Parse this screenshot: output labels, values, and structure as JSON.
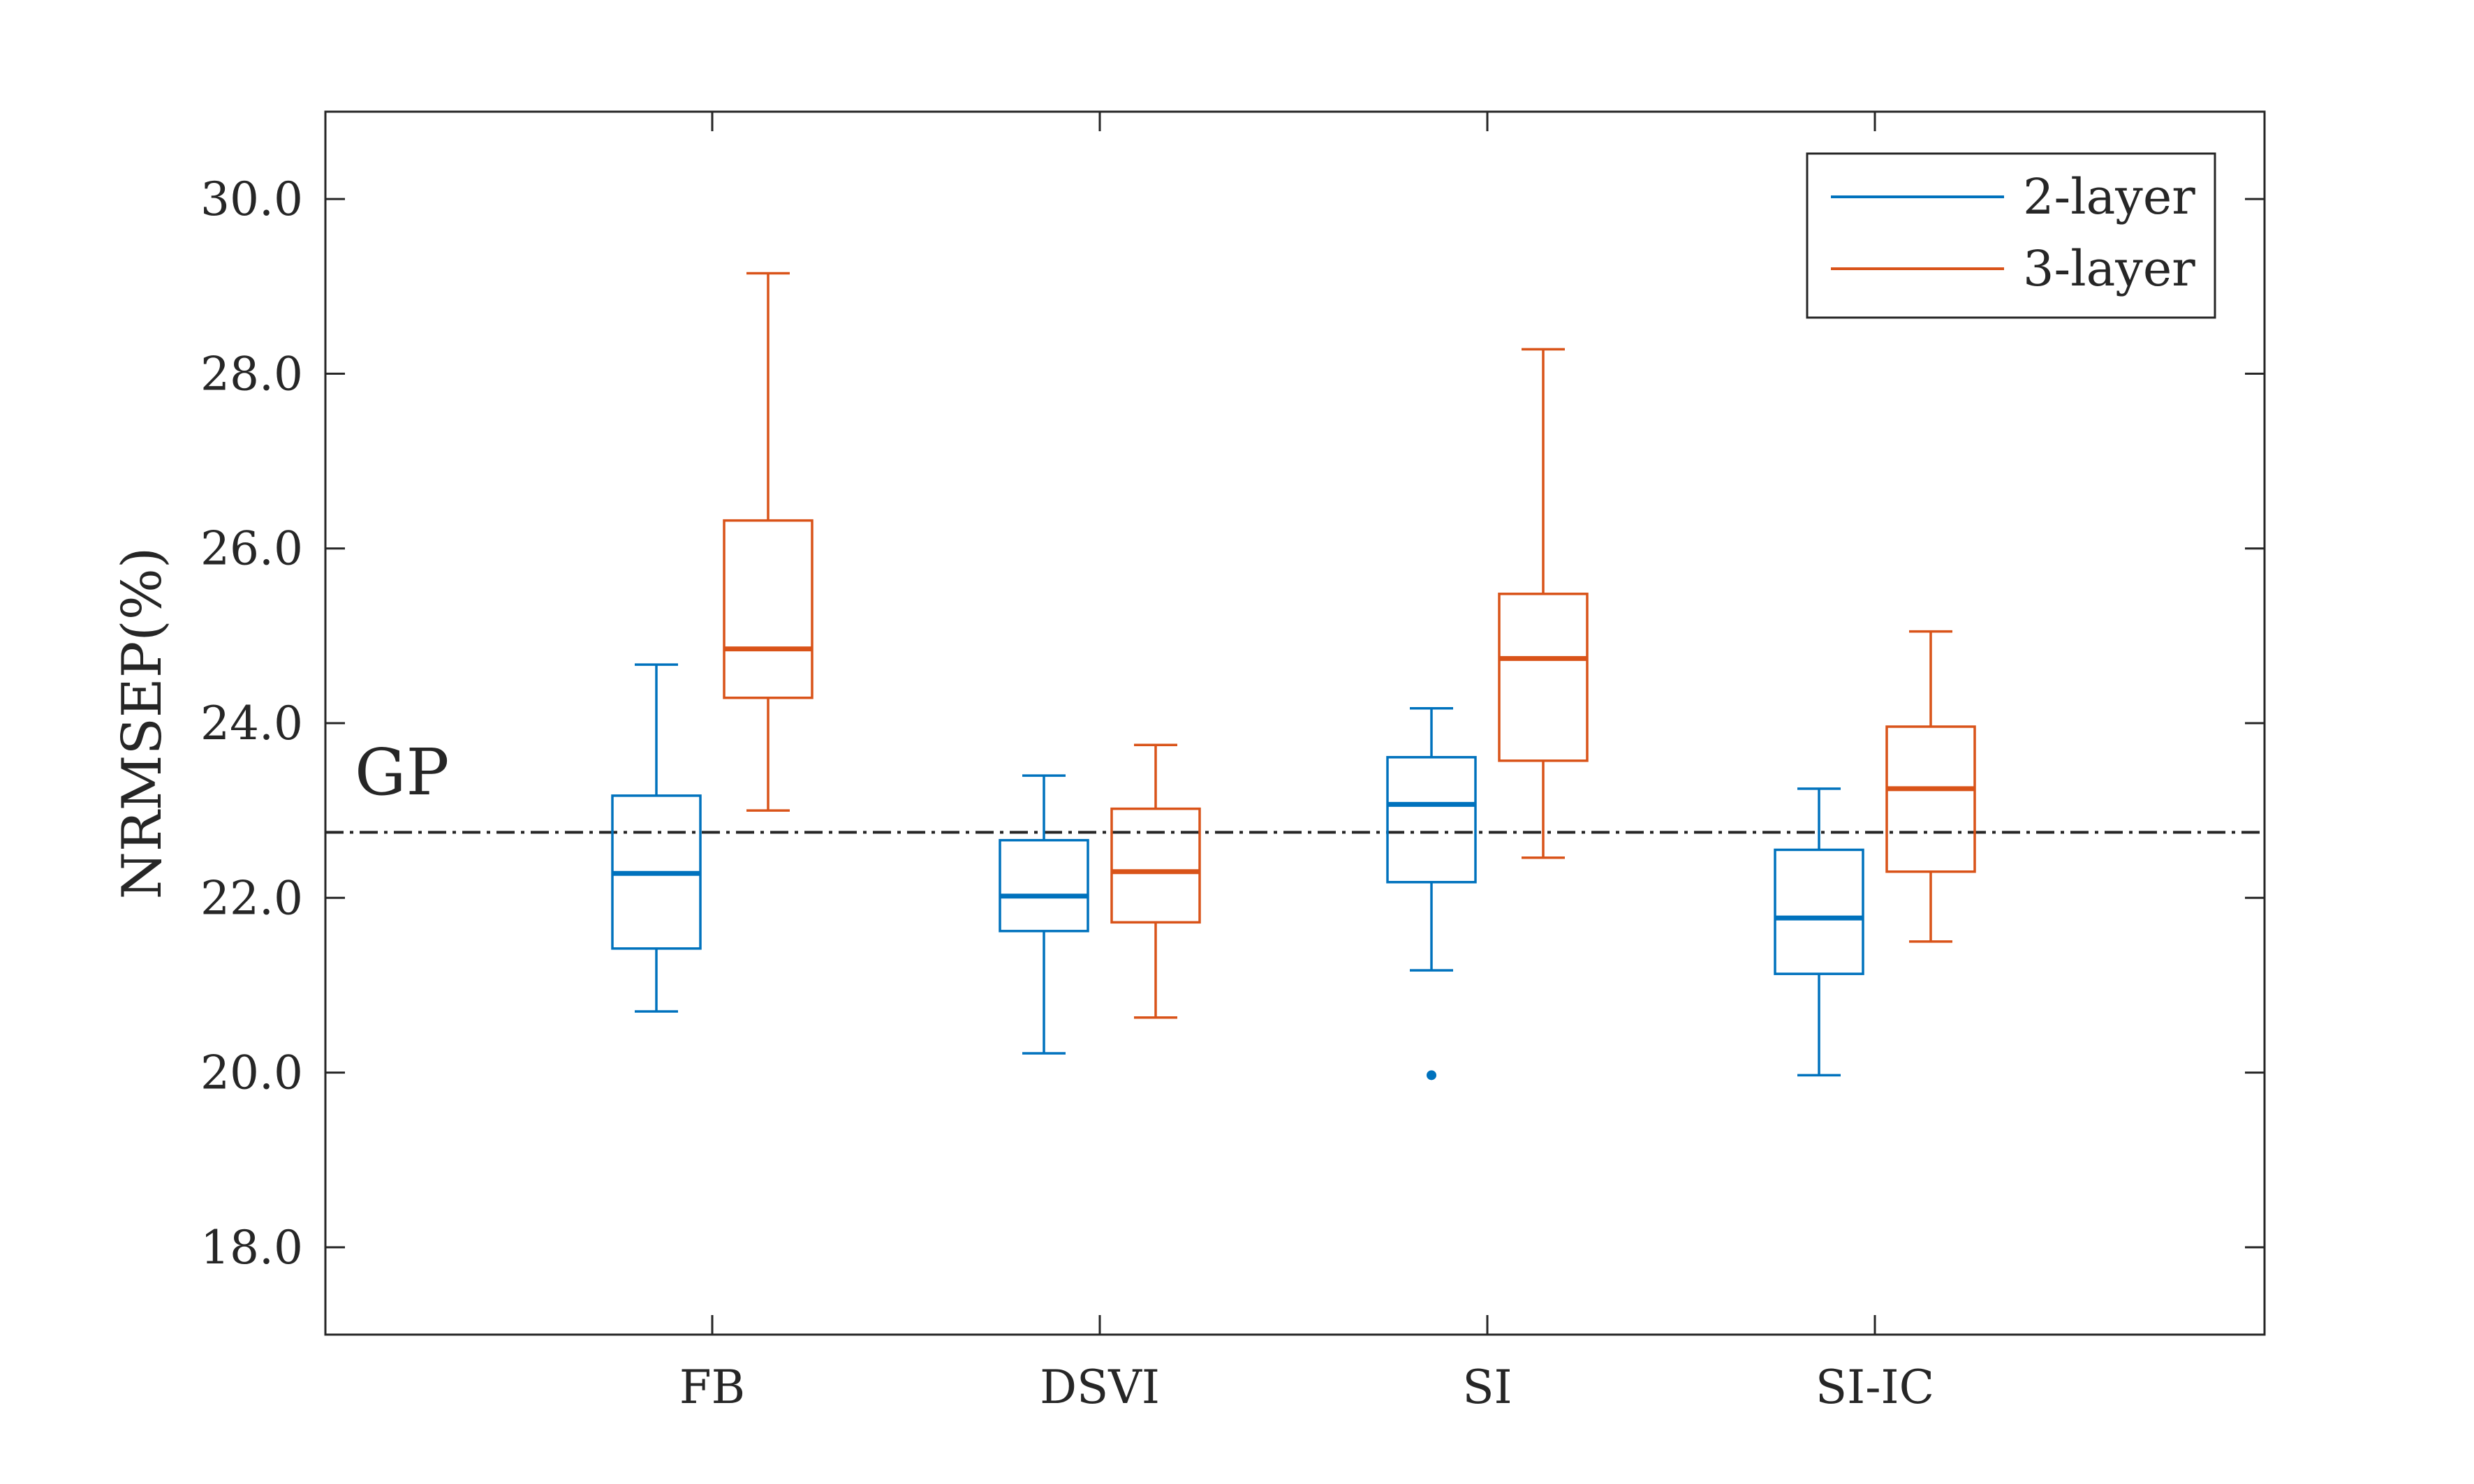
{
  "chart_data": {
    "type": "box",
    "title": "",
    "xlabel": "",
    "ylabel": "NRMSEP(%)",
    "ylim": [
      17.0,
      31.0
    ],
    "yticks": [
      18.0,
      20.0,
      22.0,
      24.0,
      26.0,
      28.0,
      30.0
    ],
    "ytick_labels": [
      "18.0",
      "20.0",
      "22.0",
      "24.0",
      "26.0",
      "28.0",
      "30.0"
    ],
    "categories": [
      "FB",
      "DSVI",
      "SI",
      "SI-IC"
    ],
    "legend_position": "top-right",
    "reference_line": {
      "label": "GP",
      "value": 22.75,
      "color": "#262626"
    },
    "series": [
      {
        "name": "2-layer",
        "color": "#0072BD",
        "boxes": [
          {
            "whisker_low": 20.7,
            "q1": 21.42,
            "median": 22.28,
            "q3": 23.17,
            "whisker_high": 24.67,
            "outliers": []
          },
          {
            "whisker_low": 20.22,
            "q1": 21.62,
            "median": 22.02,
            "q3": 22.66,
            "whisker_high": 23.4,
            "outliers": []
          },
          {
            "whisker_low": 21.17,
            "q1": 22.18,
            "median": 23.07,
            "q3": 23.61,
            "whisker_high": 24.17,
            "outliers": [
              19.97
            ]
          },
          {
            "whisker_low": 19.97,
            "q1": 21.13,
            "median": 21.77,
            "q3": 22.55,
            "whisker_high": 23.25,
            "outliers": []
          }
        ]
      },
      {
        "name": "3-layer",
        "color": "#D95319",
        "boxes": [
          {
            "whisker_low": 23.0,
            "q1": 24.29,
            "median": 24.85,
            "q3": 26.32,
            "whisker_high": 29.15,
            "outliers": []
          },
          {
            "whisker_low": 20.63,
            "q1": 21.72,
            "median": 22.3,
            "q3": 23.02,
            "whisker_high": 23.75,
            "outliers": []
          },
          {
            "whisker_low": 22.46,
            "q1": 23.57,
            "median": 24.74,
            "q3": 25.48,
            "whisker_high": 28.28,
            "outliers": []
          },
          {
            "whisker_low": 21.5,
            "q1": 22.3,
            "median": 23.25,
            "q3": 23.96,
            "whisker_high": 25.05,
            "outliers": []
          }
        ]
      }
    ]
  }
}
